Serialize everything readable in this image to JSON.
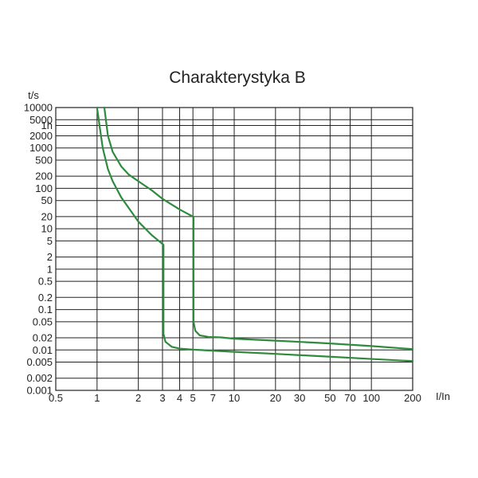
{
  "chart_data": {
    "type": "line",
    "title": "Charakterystyka B",
    "xlabel": "I/In",
    "ylabel": "t/s",
    "x_scale": "log",
    "y_scale": "log",
    "xlim": [
      0.5,
      200
    ],
    "ylim": [
      0.001,
      10000
    ],
    "grid": true,
    "line_color": "#2e8b3e",
    "x_ticks": [
      {
        "value": 0.5,
        "label": "0.5"
      },
      {
        "value": 1,
        "label": "1"
      },
      {
        "value": 2,
        "label": "2"
      },
      {
        "value": 3,
        "label": "3"
      },
      {
        "value": 4,
        "label": "4"
      },
      {
        "value": 5,
        "label": "5"
      },
      {
        "value": 7,
        "label": "7"
      },
      {
        "value": 10,
        "label": "10"
      },
      {
        "value": 20,
        "label": "20"
      },
      {
        "value": 30,
        "label": "30"
      },
      {
        "value": 50,
        "label": "50"
      },
      {
        "value": 70,
        "label": "70"
      },
      {
        "value": 100,
        "label": "100"
      },
      {
        "value": 200,
        "label": "200"
      }
    ],
    "x_grid": [
      0.5,
      1,
      2,
      3,
      4,
      5,
      7,
      10,
      20,
      30,
      50,
      70,
      100,
      200
    ],
    "y_ticks": [
      {
        "value": 10000,
        "label": "10000"
      },
      {
        "value": 5000,
        "label": "5000"
      },
      {
        "value": 3600,
        "label": "1h"
      },
      {
        "value": 2000,
        "label": "2000"
      },
      {
        "value": 1000,
        "label": "1000"
      },
      {
        "value": 500,
        "label": "500"
      },
      {
        "value": 200,
        "label": "200"
      },
      {
        "value": 100,
        "label": "100"
      },
      {
        "value": 50,
        "label": "50"
      },
      {
        "value": 20,
        "label": "20"
      },
      {
        "value": 10,
        "label": "10"
      },
      {
        "value": 5,
        "label": "5"
      },
      {
        "value": 2,
        "label": "2"
      },
      {
        "value": 1,
        "label": "1"
      },
      {
        "value": 0.5,
        "label": "0.5"
      },
      {
        "value": 0.2,
        "label": "0.2"
      },
      {
        "value": 0.1,
        "label": "0.1"
      },
      {
        "value": 0.05,
        "label": "0.05"
      },
      {
        "value": 0.02,
        "label": "0.02"
      },
      {
        "value": 0.01,
        "label": "0.01"
      },
      {
        "value": 0.005,
        "label": "0.005"
      },
      {
        "value": 0.002,
        "label": "0.002"
      },
      {
        "value": 0.001,
        "label": "0.001"
      }
    ],
    "y_grid": [
      10000,
      5000,
      3600,
      2000,
      1000,
      500,
      200,
      100,
      50,
      20,
      10,
      5,
      2,
      1,
      0.5,
      0.2,
      0.1,
      0.05,
      0.02,
      0.01,
      0.005,
      0.002,
      0.001
    ],
    "series": [
      {
        "points": [
          [
            1.0,
            10000
          ],
          [
            1.05,
            3000
          ],
          [
            1.1,
            1000
          ],
          [
            1.2,
            300
          ],
          [
            1.3,
            150
          ],
          [
            1.5,
            60
          ],
          [
            1.8,
            25
          ],
          [
            2.0,
            15
          ],
          [
            2.5,
            7
          ],
          [
            3.0,
            4.2
          ],
          [
            3.05,
            4
          ],
          [
            3.05,
            0.025
          ],
          [
            3.15,
            0.016
          ],
          [
            3.5,
            0.012
          ],
          [
            4.0,
            0.0108
          ],
          [
            5.0,
            0.0102
          ],
          [
            10.0,
            0.009
          ],
          [
            20.0,
            0.008
          ],
          [
            50.0,
            0.0068
          ],
          [
            100.0,
            0.006
          ],
          [
            200.0,
            0.0053
          ]
        ]
      },
      {
        "points": [
          [
            1.13,
            10000
          ],
          [
            1.2,
            2000
          ],
          [
            1.3,
            800
          ],
          [
            1.5,
            350
          ],
          [
            1.7,
            220
          ],
          [
            2.0,
            150
          ],
          [
            2.5,
            90
          ],
          [
            3.0,
            55
          ],
          [
            4.0,
            30
          ],
          [
            5.0,
            20
          ],
          [
            5.05,
            20
          ],
          [
            5.05,
            0.05
          ],
          [
            5.2,
            0.03
          ],
          [
            5.6,
            0.023
          ],
          [
            6.5,
            0.021
          ],
          [
            8.0,
            0.0205
          ],
          [
            10.0,
            0.019
          ],
          [
            20.0,
            0.017
          ],
          [
            50.0,
            0.0145
          ],
          [
            100.0,
            0.0125
          ],
          [
            200.0,
            0.0105
          ]
        ]
      }
    ]
  }
}
